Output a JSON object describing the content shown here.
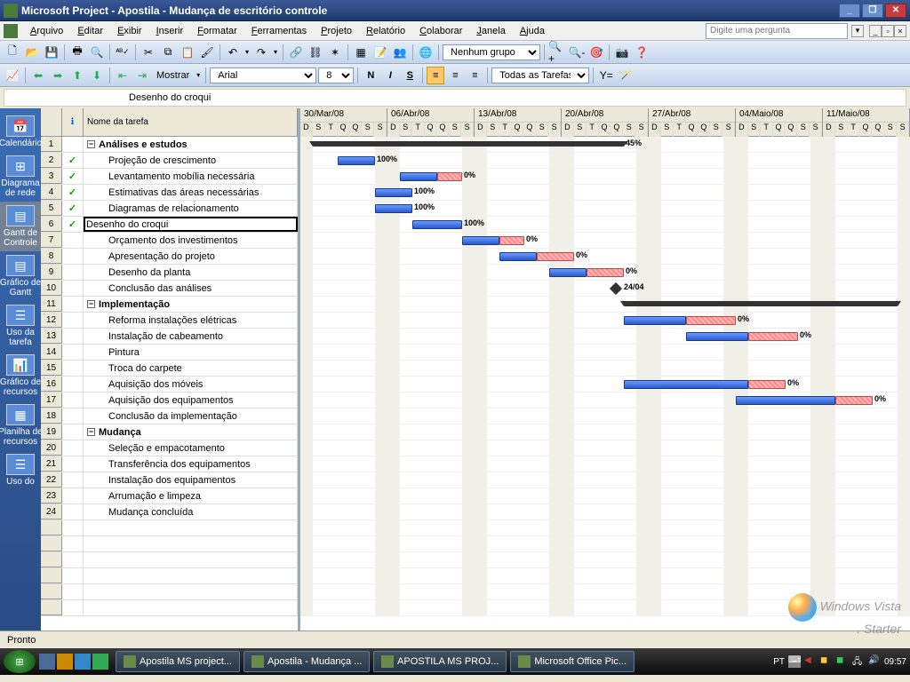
{
  "window": {
    "title": "Microsoft Project - Apostila - Mudança de escritório controle",
    "min": "_",
    "max": "❐",
    "close": "✕"
  },
  "menu": {
    "items": [
      "Arquivo",
      "Editar",
      "Exibir",
      "Inserir",
      "Formatar",
      "Ferramentas",
      "Projeto",
      "Relatório",
      "Colaborar",
      "Janela",
      "Ajuda"
    ],
    "askbox": "Digite uma pergunta"
  },
  "toolbars": {
    "font": "Arial",
    "fontsize": "8",
    "filter": "Todas as Tarefas",
    "group": "Nenhum grupo",
    "show": "Mostrar"
  },
  "entrybar": {
    "value": "Desenho do croqui"
  },
  "viewbar": {
    "items": [
      {
        "label": "Calendário",
        "icon": "📅"
      },
      {
        "label": "Diagrama de rede",
        "icon": "⊞"
      },
      {
        "label": "Gantt de Controle",
        "icon": "▤",
        "selected": true
      },
      {
        "label": "Gráfico de Gantt",
        "icon": "▤"
      },
      {
        "label": "Uso da tarefa",
        "icon": "☰"
      },
      {
        "label": "Gráfico de recursos",
        "icon": "📊"
      },
      {
        "label": "Planilha de recursos",
        "icon": "▦"
      },
      {
        "label": "Uso do",
        "icon": "☰"
      }
    ]
  },
  "table": {
    "columns": {
      "info": "ℹ",
      "name": "Nome da tarefa"
    },
    "rows": [
      {
        "n": 1,
        "summary": true,
        "name": "Análises e estudos"
      },
      {
        "n": 2,
        "check": true,
        "name": "Projeção de crescimento"
      },
      {
        "n": 3,
        "check": true,
        "name": "Levantamento mobília necessária"
      },
      {
        "n": 4,
        "check": true,
        "name": "Estimativas das áreas necessárias"
      },
      {
        "n": 5,
        "check": true,
        "name": "Diagramas de relacionamento"
      },
      {
        "n": 6,
        "check": true,
        "name": "Desenho do croqui",
        "selected": true
      },
      {
        "n": 7,
        "name": "Orçamento dos investimentos"
      },
      {
        "n": 8,
        "name": "Apresentação do projeto"
      },
      {
        "n": 9,
        "name": "Desenho da planta"
      },
      {
        "n": 10,
        "name": "Conclusão das análises"
      },
      {
        "n": 11,
        "summary": true,
        "name": "Implementação"
      },
      {
        "n": 12,
        "name": "Reforma instalações elétricas"
      },
      {
        "n": 13,
        "name": "Instalação de cabeamento"
      },
      {
        "n": 14,
        "name": "Pintura"
      },
      {
        "n": 15,
        "name": "Troca do carpete"
      },
      {
        "n": 16,
        "name": "Aquisição dos móveis"
      },
      {
        "n": 17,
        "name": "Aquisição dos equipamentos"
      },
      {
        "n": 18,
        "name": "Conclusão da implementação"
      },
      {
        "n": 19,
        "summary": true,
        "name": "Mudança"
      },
      {
        "n": 20,
        "name": "Seleção e empacotamento"
      },
      {
        "n": 21,
        "name": "Transferência dos equipamentos"
      },
      {
        "n": 22,
        "name": "Instalação dos equipamentos"
      },
      {
        "n": 23,
        "name": "Arrumação e limpeza"
      },
      {
        "n": 24,
        "name": "Mudança concluída"
      }
    ]
  },
  "gantt": {
    "day_width": 14,
    "weeks": [
      "30/Mar/08",
      "06/Abr/08",
      "13/Abr/08",
      "20/Abr/08",
      "27/Abr/08",
      "04/Maio/08",
      "11/Maio/08"
    ],
    "ticks": [
      "D",
      "S",
      "T",
      "Q",
      "Q",
      "S",
      "S"
    ],
    "weekend_cols": [
      0,
      6
    ],
    "bars": [
      {
        "row": 0,
        "type": "summary",
        "start": 1,
        "len": 25,
        "pct": "45%"
      },
      {
        "row": 1,
        "type": "blue",
        "start": 3,
        "len": 3,
        "pct": "100%"
      },
      {
        "row": 2,
        "type": "blue",
        "start": 8,
        "len": 3
      },
      {
        "row": 2,
        "type": "red",
        "start": 11,
        "len": 2,
        "pct": "0%"
      },
      {
        "row": 3,
        "type": "blue",
        "start": 6,
        "len": 3,
        "pct": "100%"
      },
      {
        "row": 4,
        "type": "blue",
        "start": 6,
        "len": 3,
        "pct": "100%"
      },
      {
        "row": 5,
        "type": "blue",
        "start": 9,
        "len": 4,
        "pct": "100%"
      },
      {
        "row": 6,
        "type": "blue",
        "start": 13,
        "len": 3
      },
      {
        "row": 6,
        "type": "red",
        "start": 16,
        "len": 2,
        "pct": "0%"
      },
      {
        "row": 7,
        "type": "blue",
        "start": 16,
        "len": 3
      },
      {
        "row": 7,
        "type": "red",
        "start": 19,
        "len": 3,
        "pct": "0%"
      },
      {
        "row": 8,
        "type": "blue",
        "start": 20,
        "len": 3
      },
      {
        "row": 8,
        "type": "red",
        "start": 23,
        "len": 3,
        "pct": "0%"
      },
      {
        "row": 9,
        "type": "diamond",
        "start": 25,
        "pct": "24/04"
      },
      {
        "row": 10,
        "type": "summary",
        "start": 26,
        "len": 22
      },
      {
        "row": 11,
        "type": "blue",
        "start": 26,
        "len": 5
      },
      {
        "row": 11,
        "type": "red",
        "start": 31,
        "len": 4,
        "pct": "0%"
      },
      {
        "row": 12,
        "type": "blue",
        "start": 31,
        "len": 5
      },
      {
        "row": 12,
        "type": "red",
        "start": 36,
        "len": 4,
        "pct": "0%"
      },
      {
        "row": 15,
        "type": "blue",
        "start": 26,
        "len": 10
      },
      {
        "row": 15,
        "type": "red",
        "start": 36,
        "len": 3,
        "pct": "0%"
      },
      {
        "row": 16,
        "type": "blue",
        "start": 35,
        "len": 8
      },
      {
        "row": 16,
        "type": "red",
        "start": 43,
        "len": 3,
        "pct": "0%"
      }
    ]
  },
  "statusbar": {
    "text": "Pronto"
  },
  "taskbar": {
    "tasks": [
      "Apostila MS project...",
      "Apostila - Mudança ...",
      "APOSTILA MS PROJ...",
      "Microsoft Office Pic..."
    ],
    "lang": "PT",
    "clock": "09:57"
  },
  "watermark": {
    "line1": "Windows Vista",
    "line2": ". Starter"
  }
}
